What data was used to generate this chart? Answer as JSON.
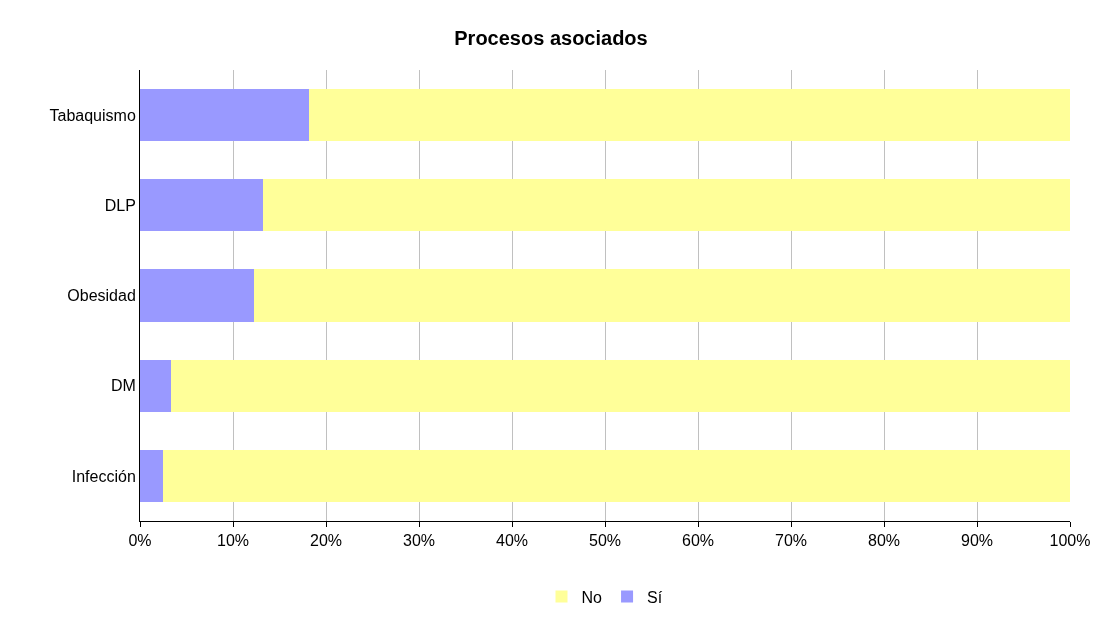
{
  "chart_data": {
    "type": "bar",
    "title": "Procesos asociados",
    "orientation": "horizontal",
    "stacked": true,
    "categories": [
      "Tabaquismo",
      "DLP",
      "Obesidad",
      "DM",
      "Infección"
    ],
    "series": [
      {
        "name": "Sí",
        "color": "#9999ff",
        "values": [
          18.2,
          13.2,
          12.3,
          3.3,
          2.5
        ]
      },
      {
        "name": "No",
        "color": "#ffff99",
        "values": [
          81.8,
          86.8,
          87.7,
          96.7,
          97.5
        ]
      }
    ],
    "xlim": [
      0,
      100
    ],
    "xticks": [
      {
        "value": 0,
        "label": "0%"
      },
      {
        "value": 10,
        "label": "10%"
      },
      {
        "value": 20,
        "label": "20%"
      },
      {
        "value": 30,
        "label": "30%"
      },
      {
        "value": 40,
        "label": "40%"
      },
      {
        "value": 50,
        "label": "50%"
      },
      {
        "value": 60,
        "label": "60%"
      },
      {
        "value": 70,
        "label": "70%"
      },
      {
        "value": 80,
        "label": "80%"
      },
      {
        "value": 90,
        "label": "90%"
      },
      {
        "value": 100,
        "label": "100%"
      }
    ],
    "grid": "x",
    "legend": "bottom"
  }
}
